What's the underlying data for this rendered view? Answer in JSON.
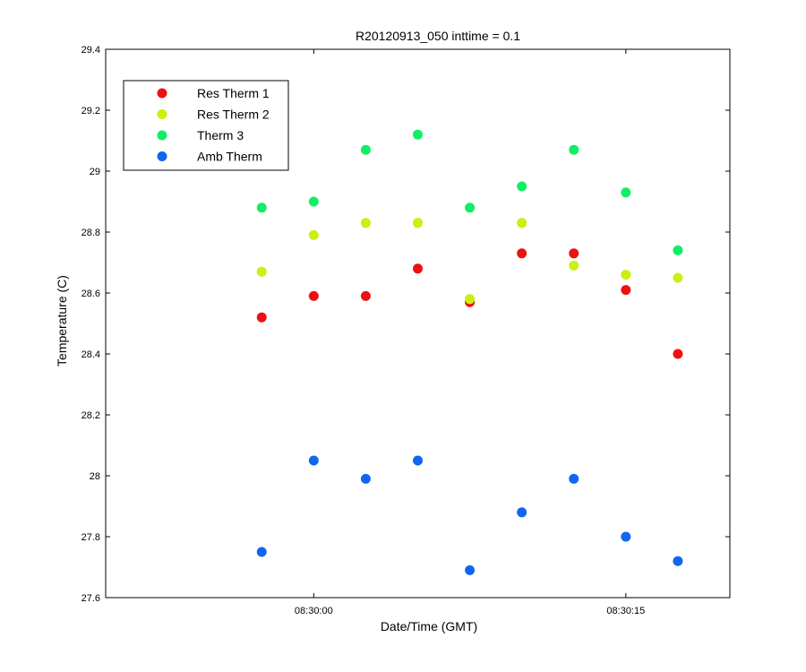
{
  "chart_data": {
    "type": "scatter",
    "title": "R20120913_050 inttime = 0.1",
    "xlabel": "Date/Time (GMT)",
    "ylabel": "Temperature (C)",
    "x_unit": "time (HH:MM:SS)",
    "xlim": [
      "08:29:50",
      "08:30:20"
    ],
    "ylim": [
      27.6,
      29.4
    ],
    "x_ticks": [
      "08:30:00",
      "08:30:15"
    ],
    "y_ticks": [
      27.6,
      27.8,
      28.0,
      28.2,
      28.4,
      28.6,
      28.8,
      29.0,
      29.2,
      29.4
    ],
    "y_tick_labels": [
      "27.6",
      "27.8",
      "28",
      "28.2",
      "28.4",
      "28.6",
      "28.8",
      "29",
      "29.2",
      "29.4"
    ],
    "grid": false,
    "legend_position": "top-left",
    "x": [
      "08:29:57.5",
      "08:30:00",
      "08:30:02.5",
      "08:30:05",
      "08:30:07.5",
      "08:30:10",
      "08:30:12.5",
      "08:30:15",
      "08:30:17.5"
    ],
    "series": [
      {
        "name": "Res Therm 1",
        "color": "#ee1111",
        "values": [
          28.52,
          28.59,
          28.59,
          28.68,
          28.57,
          28.73,
          28.73,
          28.61,
          28.4
        ]
      },
      {
        "name": "Res Therm 2",
        "color": "#ccee11",
        "values": [
          28.67,
          28.79,
          28.83,
          28.83,
          28.58,
          28.83,
          28.69,
          28.66,
          28.65
        ]
      },
      {
        "name": "Therm 3",
        "color": "#11ee66",
        "values": [
          28.88,
          28.9,
          29.07,
          29.12,
          28.88,
          28.95,
          29.07,
          28.93,
          28.74
        ]
      },
      {
        "name": "Amb Therm",
        "color": "#1166ee",
        "values": [
          27.75,
          28.05,
          27.99,
          28.05,
          27.69,
          27.88,
          27.99,
          27.8,
          27.72
        ]
      }
    ]
  }
}
